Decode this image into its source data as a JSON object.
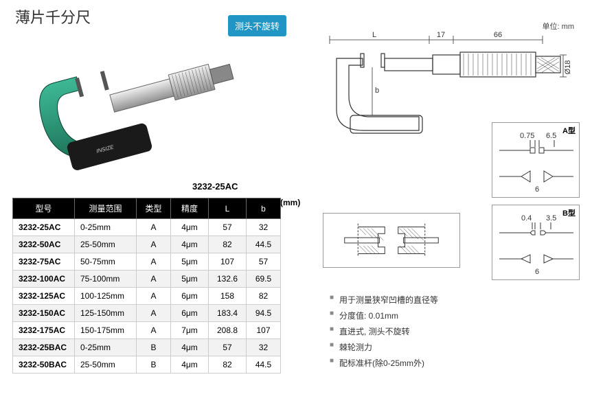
{
  "title": "薄片千分尺",
  "badge": "测头不旋转",
  "unit_label": "单位: mm",
  "model_caption": "3232-25AC",
  "mm_unit": "(mm)",
  "table": {
    "headers": [
      "型号",
      "测量范围",
      "类型",
      "精度",
      "L",
      "b"
    ],
    "rows": [
      [
        "3232-25AC",
        "0-25mm",
        "A",
        "4μm",
        "57",
        "32"
      ],
      [
        "3232-50AC",
        "25-50mm",
        "A",
        "4μm",
        "82",
        "44.5"
      ],
      [
        "3232-75AC",
        "50-75mm",
        "A",
        "5μm",
        "107",
        "57"
      ],
      [
        "3232-100AC",
        "75-100mm",
        "A",
        "5μm",
        "132.6",
        "69.5"
      ],
      [
        "3232-125AC",
        "100-125mm",
        "A",
        "6μm",
        "158",
        "82"
      ],
      [
        "3232-150AC",
        "125-150mm",
        "A",
        "6μm",
        "183.4",
        "94.5"
      ],
      [
        "3232-175AC",
        "150-175mm",
        "A",
        "7μm",
        "208.8",
        "107"
      ],
      [
        "3232-25BAC",
        "0-25mm",
        "B",
        "4μm",
        "57",
        "32"
      ],
      [
        "3232-50BAC",
        "25-50mm",
        "B",
        "4μm",
        "82",
        "44.5"
      ]
    ]
  },
  "dimensions": {
    "L": "L",
    "d17": "17",
    "d66": "66",
    "d18": "Ø18",
    "b": "b"
  },
  "type_a": {
    "label": "A型",
    "d075": "0.75",
    "d65": "6.5",
    "d6": "6"
  },
  "type_b": {
    "label": "B型",
    "d04": "0.4",
    "d35": "3.5",
    "d6": "6"
  },
  "features": [
    "用于测量狭窄凹槽的直径等",
    "分度值: 0.01mm",
    "直进式, 测头不旋转",
    "棘轮测力",
    "配标准杆(除0-25mm外)"
  ],
  "colors": {
    "green": "#2a9d7a",
    "dark_green": "#1a6b52",
    "chrome": "#d8d8d8",
    "chrome_dark": "#888888"
  }
}
